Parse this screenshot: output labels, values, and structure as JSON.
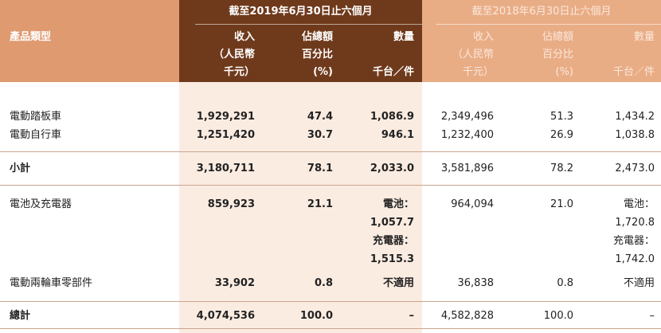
{
  "header": {
    "product_type": "產品類型",
    "period_current": "截至2019年6月30日止六個月",
    "period_prior": "截至2018年6月30日止六個月",
    "col_revenue": [
      "收入",
      "（人民幣",
      "千元）"
    ],
    "col_pct": [
      "佔總額",
      "百分比",
      "(%)"
    ],
    "col_qty": [
      "數量",
      "千台／件"
    ]
  },
  "rows": {
    "scooter": {
      "name": "電動踏板車",
      "rev19": "1,929,291",
      "pct19": "47.4",
      "qty19": "1,086.9",
      "rev18": "2,349,496",
      "pct18": "51.3",
      "qty18": "1,434.2"
    },
    "bike": {
      "name": "電動自行車",
      "rev19": "1,251,420",
      "pct19": "30.7",
      "qty19": "946.1",
      "rev18": "1,232,400",
      "pct18": "26.9",
      "qty18": "1,038.8"
    },
    "subtotal": {
      "name": "小計",
      "rev19": "3,180,711",
      "pct19": "78.1",
      "qty19": "2,033.0",
      "rev18": "3,581,896",
      "pct18": "78.2",
      "qty18": "2,473.0"
    },
    "battery": {
      "name": "電池及充電器",
      "rev19": "859,923",
      "pct19": "21.1",
      "qty19_l1": "電池：",
      "qty19_l2": "1,057.7",
      "qty19_l3": "充電器：",
      "qty19_l4": "1,515.3",
      "rev18": "964,094",
      "pct18": "21.0",
      "qty18_l1": "電池：",
      "qty18_l2": "1,720.8",
      "qty18_l3": "充電器：",
      "qty18_l4": "1,742.0"
    },
    "parts": {
      "name": "電動兩輪車零部件",
      "rev19": "33,902",
      "pct19": "0.8",
      "qty19": "不適用",
      "rev18": "36,838",
      "pct18": "0.8",
      "qty18": "不適用"
    },
    "total": {
      "name": "總計",
      "rev19": "4,074,536",
      "pct19": "100.0",
      "qty19": "–",
      "rev18": "4,582,828",
      "pct18": "100.0",
      "qty18": "–"
    }
  }
}
